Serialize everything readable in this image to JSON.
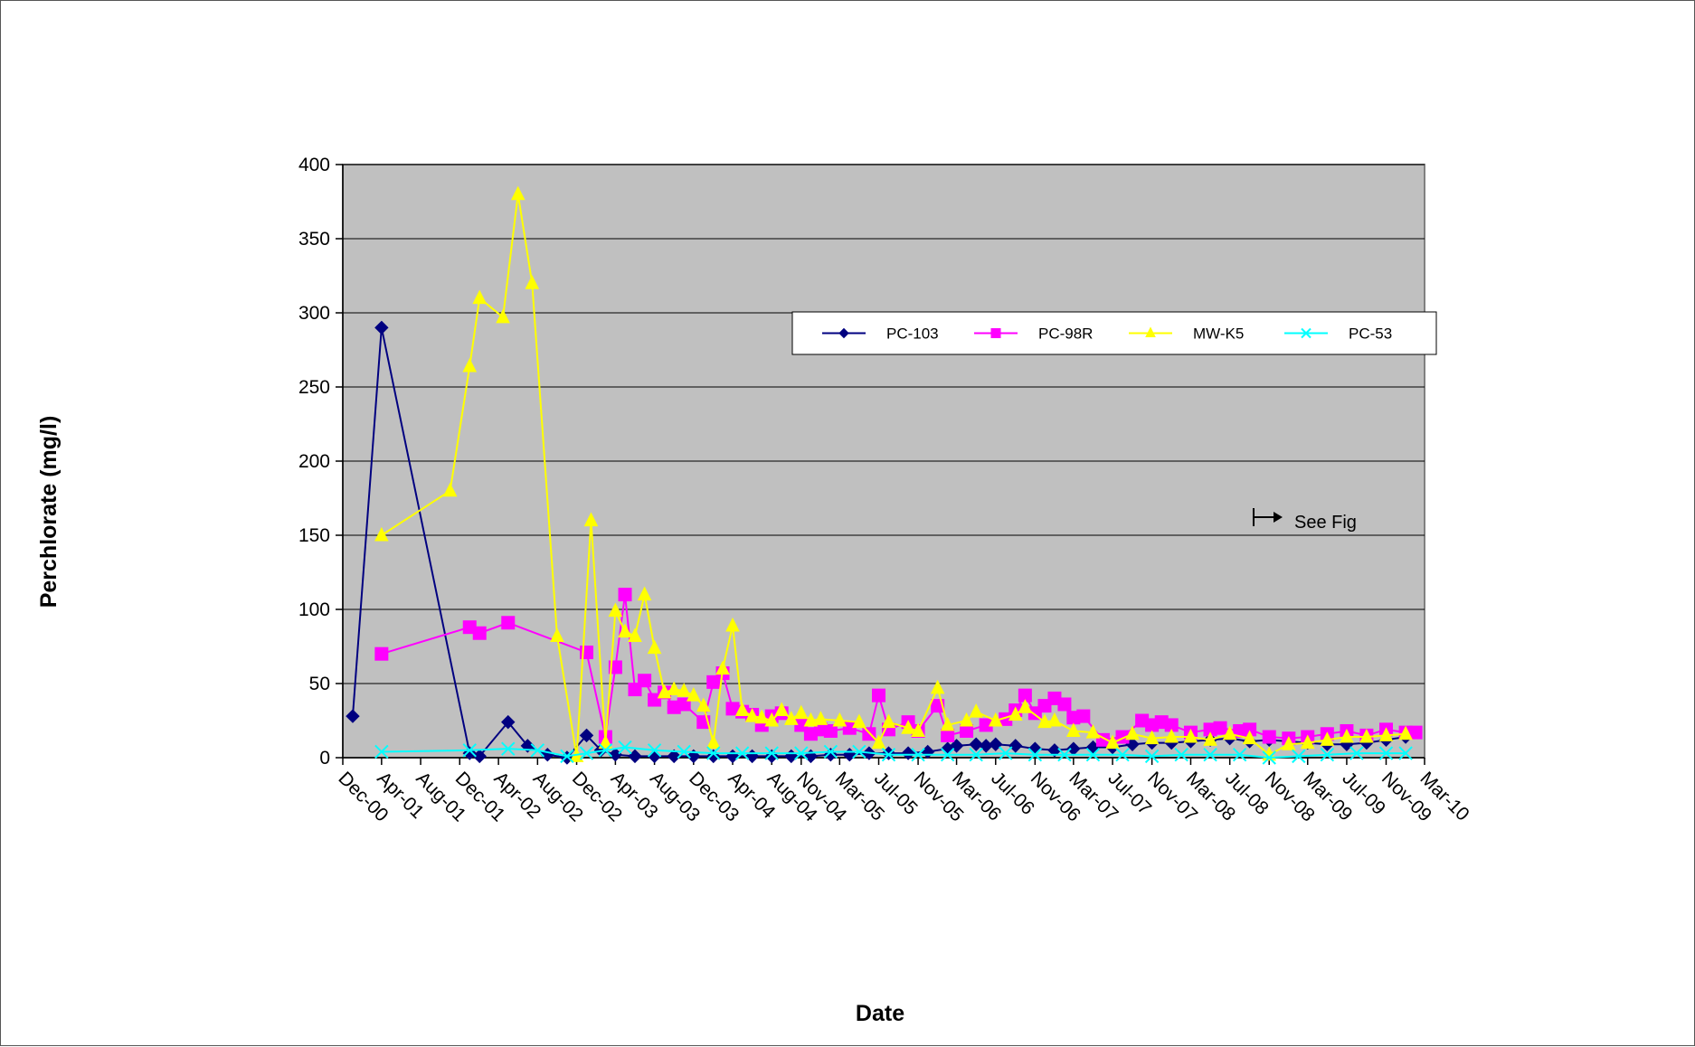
{
  "chart_data": {
    "type": "line",
    "title": "",
    "xlabel": "Date",
    "ylabel": "Perchlorate (mg/l)",
    "ylim": [
      0,
      400
    ],
    "yticks": [
      "0",
      "50",
      "100",
      "150",
      "200",
      "250",
      "300",
      "350",
      "400"
    ],
    "xlim": [
      "2000-12-01",
      "2010-03-01"
    ],
    "xticks": [
      {
        "label": "Dec-00",
        "date": "2000-12-01"
      },
      {
        "label": "Apr-01",
        "date": "2001-04-01"
      },
      {
        "label": "Aug-01",
        "date": "2001-08-01"
      },
      {
        "label": "Dec-01",
        "date": "2001-12-01"
      },
      {
        "label": "Apr-02",
        "date": "2002-04-01"
      },
      {
        "label": "Aug-02",
        "date": "2002-08-01"
      },
      {
        "label": "Dec-02",
        "date": "2002-12-01"
      },
      {
        "label": "Apr-03",
        "date": "2003-04-01"
      },
      {
        "label": "Aug-03",
        "date": "2003-08-01"
      },
      {
        "label": "Dec-03",
        "date": "2003-12-01"
      },
      {
        "label": "Apr-04",
        "date": "2004-04-01"
      },
      {
        "label": "Aug-04",
        "date": "2004-08-01"
      },
      {
        "label": "Nov-04",
        "date": "2004-11-01"
      },
      {
        "label": "Mar-05",
        "date": "2005-03-01"
      },
      {
        "label": "Jul-05",
        "date": "2005-07-01"
      },
      {
        "label": "Nov-05",
        "date": "2005-11-01"
      },
      {
        "label": "Mar-06",
        "date": "2006-03-01"
      },
      {
        "label": "Jul-06",
        "date": "2006-07-01"
      },
      {
        "label": "Nov-06",
        "date": "2006-11-01"
      },
      {
        "label": "Mar-07",
        "date": "2007-03-01"
      },
      {
        "label": "Jul-07",
        "date": "2007-07-01"
      },
      {
        "label": "Nov-07",
        "date": "2007-11-01"
      },
      {
        "label": "Mar-08",
        "date": "2008-03-01"
      },
      {
        "label": "Jul-08",
        "date": "2008-07-01"
      },
      {
        "label": "Nov-08",
        "date": "2008-11-01"
      },
      {
        "label": "Mar-09",
        "date": "2009-03-01"
      },
      {
        "label": "Jul-09",
        "date": "2009-07-01"
      },
      {
        "label": "Nov-09",
        "date": "2009-11-01"
      },
      {
        "label": "Mar-10",
        "date": "2010-03-01"
      }
    ],
    "grid": true,
    "background": "#c0c0c0",
    "legend_position": "top-right",
    "annotation": "See Fig",
    "series": [
      {
        "name": "PC-103",
        "color": "#000080",
        "marker": "diamond",
        "points": [
          [
            "2001-01-01",
            28
          ],
          [
            "2001-04-01",
            290
          ],
          [
            "2002-01-01",
            3
          ],
          [
            "2002-02-01",
            1
          ],
          [
            "2002-05-01",
            24
          ],
          [
            "2002-07-01",
            8
          ],
          [
            "2002-09-01",
            2
          ],
          [
            "2002-11-01",
            0
          ],
          [
            "2003-01-01",
            15
          ],
          [
            "2003-02-15",
            5
          ],
          [
            "2003-04-01",
            2
          ],
          [
            "2003-06-01",
            1
          ],
          [
            "2003-08-01",
            1
          ],
          [
            "2003-10-01",
            1
          ],
          [
            "2003-12-01",
            1
          ],
          [
            "2004-02-01",
            1
          ],
          [
            "2004-04-01",
            1
          ],
          [
            "2004-06-01",
            1
          ],
          [
            "2004-08-01",
            1
          ],
          [
            "2004-10-01",
            1
          ],
          [
            "2004-12-01",
            1
          ],
          [
            "2005-02-01",
            2
          ],
          [
            "2005-04-01",
            2
          ],
          [
            "2005-06-01",
            3
          ],
          [
            "2005-08-01",
            3
          ],
          [
            "2005-10-01",
            3
          ],
          [
            "2005-12-01",
            4
          ],
          [
            "2006-02-01",
            6
          ],
          [
            "2006-03-01",
            8
          ],
          [
            "2006-05-01",
            9
          ],
          [
            "2006-06-01",
            8
          ],
          [
            "2006-07-01",
            9
          ],
          [
            "2006-09-01",
            8
          ],
          [
            "2006-11-01",
            6
          ],
          [
            "2007-01-01",
            5
          ],
          [
            "2007-03-01",
            6
          ],
          [
            "2007-05-01",
            7
          ],
          [
            "2007-07-01",
            7
          ],
          [
            "2007-09-01",
            9
          ],
          [
            "2007-11-01",
            10
          ],
          [
            "2008-01-01",
            10
          ],
          [
            "2008-03-01",
            11
          ],
          [
            "2008-05-01",
            12
          ],
          [
            "2008-07-01",
            13
          ],
          [
            "2008-09-01",
            11
          ],
          [
            "2008-11-01",
            12
          ],
          [
            "2009-01-01",
            11
          ],
          [
            "2009-03-01",
            10
          ],
          [
            "2009-05-01",
            9
          ],
          [
            "2009-07-01",
            9
          ],
          [
            "2009-09-01",
            10
          ],
          [
            "2009-11-01",
            12
          ],
          [
            "2010-01-01",
            14
          ]
        ]
      },
      {
        "name": "PC-98R",
        "color": "#ff00ff",
        "marker": "square",
        "points": [
          [
            "2001-04-01",
            70
          ],
          [
            "2002-01-01",
            88
          ],
          [
            "2002-02-01",
            84
          ],
          [
            "2002-05-01",
            91
          ],
          [
            "2003-01-01",
            71
          ],
          [
            "2003-03-01",
            14
          ],
          [
            "2003-04-01",
            61
          ],
          [
            "2003-05-01",
            110
          ],
          [
            "2003-06-01",
            46
          ],
          [
            "2003-07-01",
            52
          ],
          [
            "2003-08-01",
            39
          ],
          [
            "2003-09-01",
            44
          ],
          [
            "2003-10-01",
            34
          ],
          [
            "2003-11-01",
            36
          ],
          [
            "2004-01-01",
            24
          ],
          [
            "2004-02-01",
            51
          ],
          [
            "2004-03-01",
            57
          ],
          [
            "2004-04-01",
            33
          ],
          [
            "2004-05-01",
            31
          ],
          [
            "2004-06-01",
            29
          ],
          [
            "2004-07-01",
            22
          ],
          [
            "2004-08-01",
            28
          ],
          [
            "2004-09-01",
            30
          ],
          [
            "2004-11-01",
            22
          ],
          [
            "2004-12-01",
            16
          ],
          [
            "2005-01-01",
            19
          ],
          [
            "2005-02-01",
            18
          ],
          [
            "2005-04-01",
            20
          ],
          [
            "2005-06-01",
            16
          ],
          [
            "2005-07-01",
            42
          ],
          [
            "2005-08-01",
            19
          ],
          [
            "2005-10-01",
            24
          ],
          [
            "2005-11-01",
            18
          ],
          [
            "2006-01-01",
            35
          ],
          [
            "2006-02-01",
            15
          ],
          [
            "2006-04-01",
            18
          ],
          [
            "2006-06-01",
            22
          ],
          [
            "2006-08-01",
            26
          ],
          [
            "2006-09-01",
            32
          ],
          [
            "2006-10-01",
            42
          ],
          [
            "2006-11-01",
            30
          ],
          [
            "2006-12-01",
            35
          ],
          [
            "2007-01-01",
            40
          ],
          [
            "2007-02-01",
            36
          ],
          [
            "2007-03-01",
            27
          ],
          [
            "2007-04-01",
            28
          ],
          [
            "2007-06-01",
            12
          ],
          [
            "2007-08-01",
            14
          ],
          [
            "2007-10-01",
            25
          ],
          [
            "2007-11-01",
            22
          ],
          [
            "2007-12-01",
            24
          ],
          [
            "2008-01-01",
            22
          ],
          [
            "2008-03-01",
            17
          ],
          [
            "2008-05-01",
            19
          ],
          [
            "2008-06-01",
            20
          ],
          [
            "2008-08-01",
            18
          ],
          [
            "2008-09-01",
            19
          ],
          [
            "2008-11-01",
            14
          ],
          [
            "2009-01-01",
            13
          ],
          [
            "2009-03-01",
            14
          ],
          [
            "2009-05-01",
            16
          ],
          [
            "2009-07-01",
            18
          ],
          [
            "2009-09-01",
            15
          ],
          [
            "2009-11-01",
            19
          ],
          [
            "2010-01-01",
            17
          ],
          [
            "2010-02-01",
            17
          ]
        ]
      },
      {
        "name": "MW-K5",
        "color": "#ffff00",
        "marker": "triangle",
        "points": [
          [
            "2001-04-01",
            150
          ],
          [
            "2001-11-01",
            180
          ],
          [
            "2002-01-01",
            264
          ],
          [
            "2002-02-01",
            310
          ],
          [
            "2002-04-15",
            297
          ],
          [
            "2002-06-01",
            380
          ],
          [
            "2002-07-15",
            320
          ],
          [
            "2002-10-01",
            82
          ],
          [
            "2002-12-01",
            1
          ],
          [
            "2003-01-15",
            160
          ],
          [
            "2003-03-01",
            10
          ],
          [
            "2003-04-01",
            99
          ],
          [
            "2003-05-01",
            85
          ],
          [
            "2003-06-01",
            82
          ],
          [
            "2003-07-01",
            110
          ],
          [
            "2003-08-01",
            74
          ],
          [
            "2003-09-01",
            44
          ],
          [
            "2003-10-01",
            46
          ],
          [
            "2003-11-01",
            45
          ],
          [
            "2003-12-01",
            42
          ],
          [
            "2004-01-01",
            35
          ],
          [
            "2004-02-01",
            10
          ],
          [
            "2004-03-01",
            60
          ],
          [
            "2004-04-01",
            89
          ],
          [
            "2004-05-01",
            32
          ],
          [
            "2004-06-01",
            28
          ],
          [
            "2004-07-01",
            27
          ],
          [
            "2004-08-01",
            25
          ],
          [
            "2004-09-01",
            32
          ],
          [
            "2004-10-01",
            26
          ],
          [
            "2004-11-01",
            30
          ],
          [
            "2004-12-01",
            25
          ],
          [
            "2005-01-01",
            26
          ],
          [
            "2005-03-01",
            25
          ],
          [
            "2005-05-01",
            24
          ],
          [
            "2005-07-01",
            10
          ],
          [
            "2005-08-01",
            24
          ],
          [
            "2005-10-01",
            20
          ],
          [
            "2005-11-01",
            18
          ],
          [
            "2006-01-01",
            47
          ],
          [
            "2006-02-01",
            22
          ],
          [
            "2006-04-01",
            25
          ],
          [
            "2006-05-01",
            31
          ],
          [
            "2006-07-01",
            25
          ],
          [
            "2006-09-01",
            29
          ],
          [
            "2006-10-01",
            34
          ],
          [
            "2006-12-01",
            24
          ],
          [
            "2007-01-01",
            25
          ],
          [
            "2007-03-01",
            18
          ],
          [
            "2007-05-01",
            17
          ],
          [
            "2007-07-01",
            10
          ],
          [
            "2007-09-01",
            16
          ],
          [
            "2007-11-01",
            13
          ],
          [
            "2008-01-01",
            14
          ],
          [
            "2008-03-01",
            14
          ],
          [
            "2008-05-01",
            12
          ],
          [
            "2008-07-01",
            16
          ],
          [
            "2008-09-01",
            13
          ],
          [
            "2008-11-01",
            2
          ],
          [
            "2009-01-01",
            9
          ],
          [
            "2009-03-01",
            10
          ],
          [
            "2009-05-01",
            12
          ],
          [
            "2009-07-01",
            14
          ],
          [
            "2009-09-01",
            14
          ],
          [
            "2009-11-01",
            15
          ],
          [
            "2010-01-01",
            16
          ]
        ]
      },
      {
        "name": "PC-53",
        "color": "#00ffff",
        "marker": "x",
        "points": [
          [
            "2001-04-01",
            4
          ],
          [
            "2002-01-01",
            5
          ],
          [
            "2002-05-01",
            6
          ],
          [
            "2002-08-01",
            5
          ],
          [
            "2002-11-01",
            1
          ],
          [
            "2003-01-01",
            3
          ],
          [
            "2003-03-01",
            5
          ],
          [
            "2003-05-01",
            7
          ],
          [
            "2003-08-01",
            5
          ],
          [
            "2003-11-01",
            4
          ],
          [
            "2004-02-01",
            3
          ],
          [
            "2004-05-01",
            3
          ],
          [
            "2004-08-01",
            3
          ],
          [
            "2004-11-01",
            3
          ],
          [
            "2005-02-01",
            4
          ],
          [
            "2005-05-01",
            4
          ],
          [
            "2005-08-01",
            2
          ],
          [
            "2005-11-01",
            2
          ],
          [
            "2006-02-01",
            2
          ],
          [
            "2006-05-01",
            2
          ],
          [
            "2006-08-01",
            3
          ],
          [
            "2006-11-01",
            2
          ],
          [
            "2007-02-01",
            2
          ],
          [
            "2007-05-01",
            2
          ],
          [
            "2007-08-01",
            2
          ],
          [
            "2007-11-01",
            1
          ],
          [
            "2008-02-01",
            2
          ],
          [
            "2008-05-01",
            2
          ],
          [
            "2008-08-01",
            2
          ],
          [
            "2008-11-01",
            0
          ],
          [
            "2009-02-01",
            1
          ],
          [
            "2009-05-01",
            2
          ],
          [
            "2009-08-01",
            3
          ],
          [
            "2009-11-01",
            3
          ],
          [
            "2010-01-01",
            3
          ]
        ]
      }
    ]
  }
}
